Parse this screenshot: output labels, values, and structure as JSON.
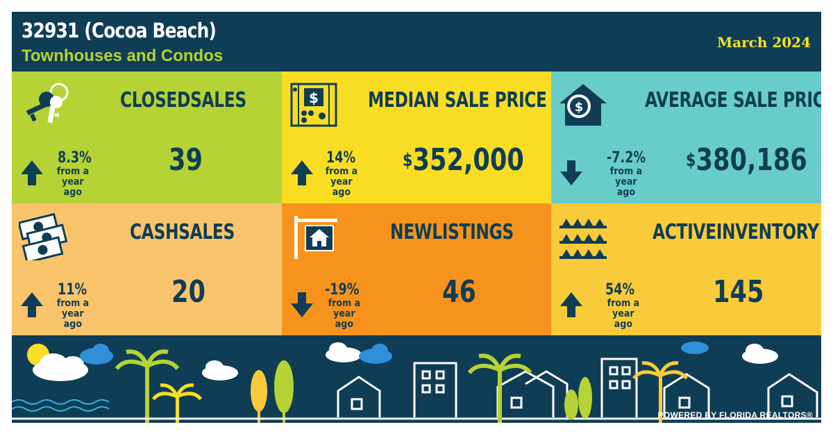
{
  "header": {
    "title": "32931 (Cocoa Beach)",
    "subtitle": "Townhouses and Condos",
    "month": "March 2024"
  },
  "colors": {
    "navy": "#0f3d55",
    "green": "#b5d334",
    "yellow": "#f9dd22",
    "teal": "#68cdc9",
    "peach": "#f9c46b",
    "orange": "#f7931d",
    "gold": "#f9cb3a"
  },
  "metrics": [
    {
      "label": "CLOSEDSALES",
      "value": "39",
      "change": "8.3%",
      "change_note": "from a year ago",
      "direction": "up",
      "icon": "keys-icon"
    },
    {
      "label": "MEDIAN SALE PRICE",
      "currency": "$",
      "value": "352,000",
      "change": "14%",
      "change_note": "from a year ago",
      "direction": "up",
      "icon": "abacus-icon"
    },
    {
      "label": "AVERAGE SALE PRICE",
      "currency": "$",
      "value": "380,186",
      "change": "-7.2%",
      "change_note": "from a year ago",
      "direction": "down",
      "icon": "house-dollar-icon"
    },
    {
      "label": "CASHSALES",
      "value": "20",
      "change": "11%",
      "change_note": "from a year ago",
      "direction": "up",
      "icon": "cash-icon"
    },
    {
      "label": "NEWLISTINGS",
      "value": "46",
      "change": "-19%",
      "change_note": "from a year ago",
      "direction": "down",
      "icon": "for-sale-sign-icon"
    },
    {
      "label": "ACTIVEINVENTORY",
      "value": "145",
      "change": "54%",
      "change_note": "from a year ago",
      "direction": "up",
      "icon": "houses-grid-icon"
    }
  ],
  "footer": {
    "powered_by": "POWERED BY FLORIDA REALTORS®"
  }
}
